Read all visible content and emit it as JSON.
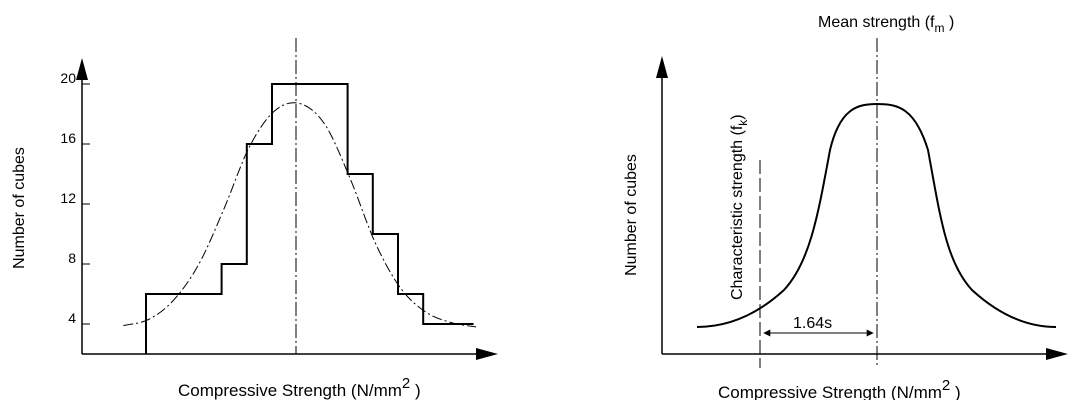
{
  "chart_data": [
    {
      "type": "bar",
      "subtype": "histogram-with-normal-curve",
      "xlabel": "Compressive Strength (N/mm",
      "xlabel_superscript": "2",
      "xlabel_suffix": " )",
      "ylabel": "Number of cubes",
      "yticks": [
        4,
        8,
        12,
        16,
        20
      ],
      "ylim": [
        2,
        24
      ],
      "bins": [
        "1",
        "2",
        "3",
        "4",
        "5",
        "6",
        "7",
        "8",
        "9",
        "10",
        "11"
      ],
      "values": [
        6,
        6,
        8,
        16,
        20,
        20,
        14,
        10,
        6,
        4,
        4
      ],
      "bin_edges": [
        0,
        2,
        3,
        4,
        5,
        7,
        8,
        9,
        10,
        11,
        13
      ],
      "curve": {
        "x": [
          0,
          1,
          2,
          3,
          4,
          5,
          6,
          7,
          8,
          9,
          10,
          11,
          12,
          13,
          14
        ],
        "values": [
          3.9,
          4.3,
          5.6,
          8,
          11.7,
          15.8,
          18.2,
          18.7,
          17.3,
          13.7,
          9.4,
          6.4,
          4.8,
          4.1,
          3.8
        ]
      },
      "mean_line": true,
      "grid": false
    },
    {
      "type": "line",
      "subtype": "normal-distribution",
      "xlabel": "Compressive Strength (N/mm",
      "xlabel_superscript": "2",
      "xlabel_suffix": " )",
      "ylabel": "Number of cubes",
      "annotations": {
        "mean": "Mean strength (f",
        "mean_subscript": "m",
        "mean_suffix": " )",
        "characteristic": "Characteristic strength (f",
        "characteristic_subscript": "k",
        "characteristic_suffix": ")",
        "offset": "1.64s"
      },
      "grid": false
    }
  ]
}
